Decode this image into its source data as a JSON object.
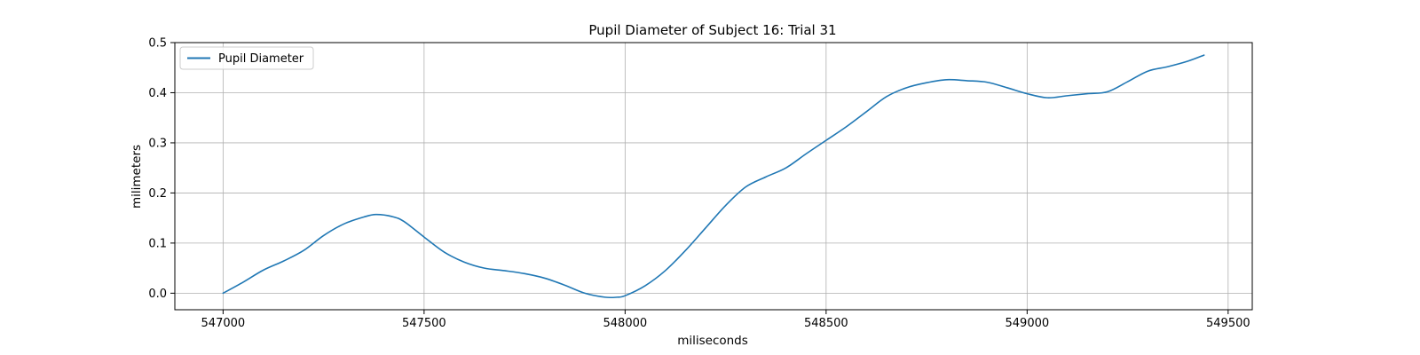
{
  "chart_data": {
    "type": "line",
    "title": "Pupil Diameter of Subject 16: Trial 31",
    "xlabel": "miliseconds",
    "ylabel": "milimeters",
    "xlim": [
      546880,
      549560
    ],
    "ylim": [
      -0.033,
      0.5
    ],
    "xticks": [
      547000,
      547500,
      548000,
      548500,
      549000,
      549500
    ],
    "xtick_labels": [
      "547000",
      "547500",
      "548000",
      "548500",
      "549000",
      "549500"
    ],
    "yticks": [
      0.0,
      0.1,
      0.2,
      0.3,
      0.4,
      0.5
    ],
    "ytick_labels": [
      "0.0",
      "0.1",
      "0.2",
      "0.3",
      "0.4",
      "0.5"
    ],
    "grid": true,
    "legend_position": "top-left",
    "series": [
      {
        "name": "Pupil Diameter",
        "color": "#1f77b4",
        "x": [
          547000,
          547050,
          547100,
          547150,
          547200,
          547250,
          547300,
          547350,
          547380,
          547420,
          547450,
          547500,
          547550,
          547600,
          547650,
          547700,
          547750,
          547800,
          547850,
          547900,
          547950,
          547980,
          548000,
          548050,
          548100,
          548150,
          548200,
          548250,
          548300,
          548350,
          548400,
          548450,
          548500,
          548550,
          548600,
          548650,
          548700,
          548750,
          548800,
          548850,
          548900,
          548950,
          549000,
          549050,
          549100,
          549150,
          549200,
          549250,
          549300,
          549350,
          549400,
          549440
        ],
        "values": [
          0.0,
          0.022,
          0.046,
          0.064,
          0.085,
          0.115,
          0.138,
          0.152,
          0.157,
          0.153,
          0.143,
          0.112,
          0.082,
          0.062,
          0.05,
          0.045,
          0.039,
          0.03,
          0.016,
          0.0,
          -0.008,
          -0.008,
          -0.005,
          0.015,
          0.045,
          0.085,
          0.13,
          0.175,
          0.212,
          0.232,
          0.25,
          0.278,
          0.305,
          0.332,
          0.362,
          0.392,
          0.41,
          0.42,
          0.426,
          0.424,
          0.421,
          0.41,
          0.398,
          0.39,
          0.394,
          0.398,
          0.402,
          0.422,
          0.443,
          0.452,
          0.463,
          0.475
        ]
      }
    ]
  }
}
